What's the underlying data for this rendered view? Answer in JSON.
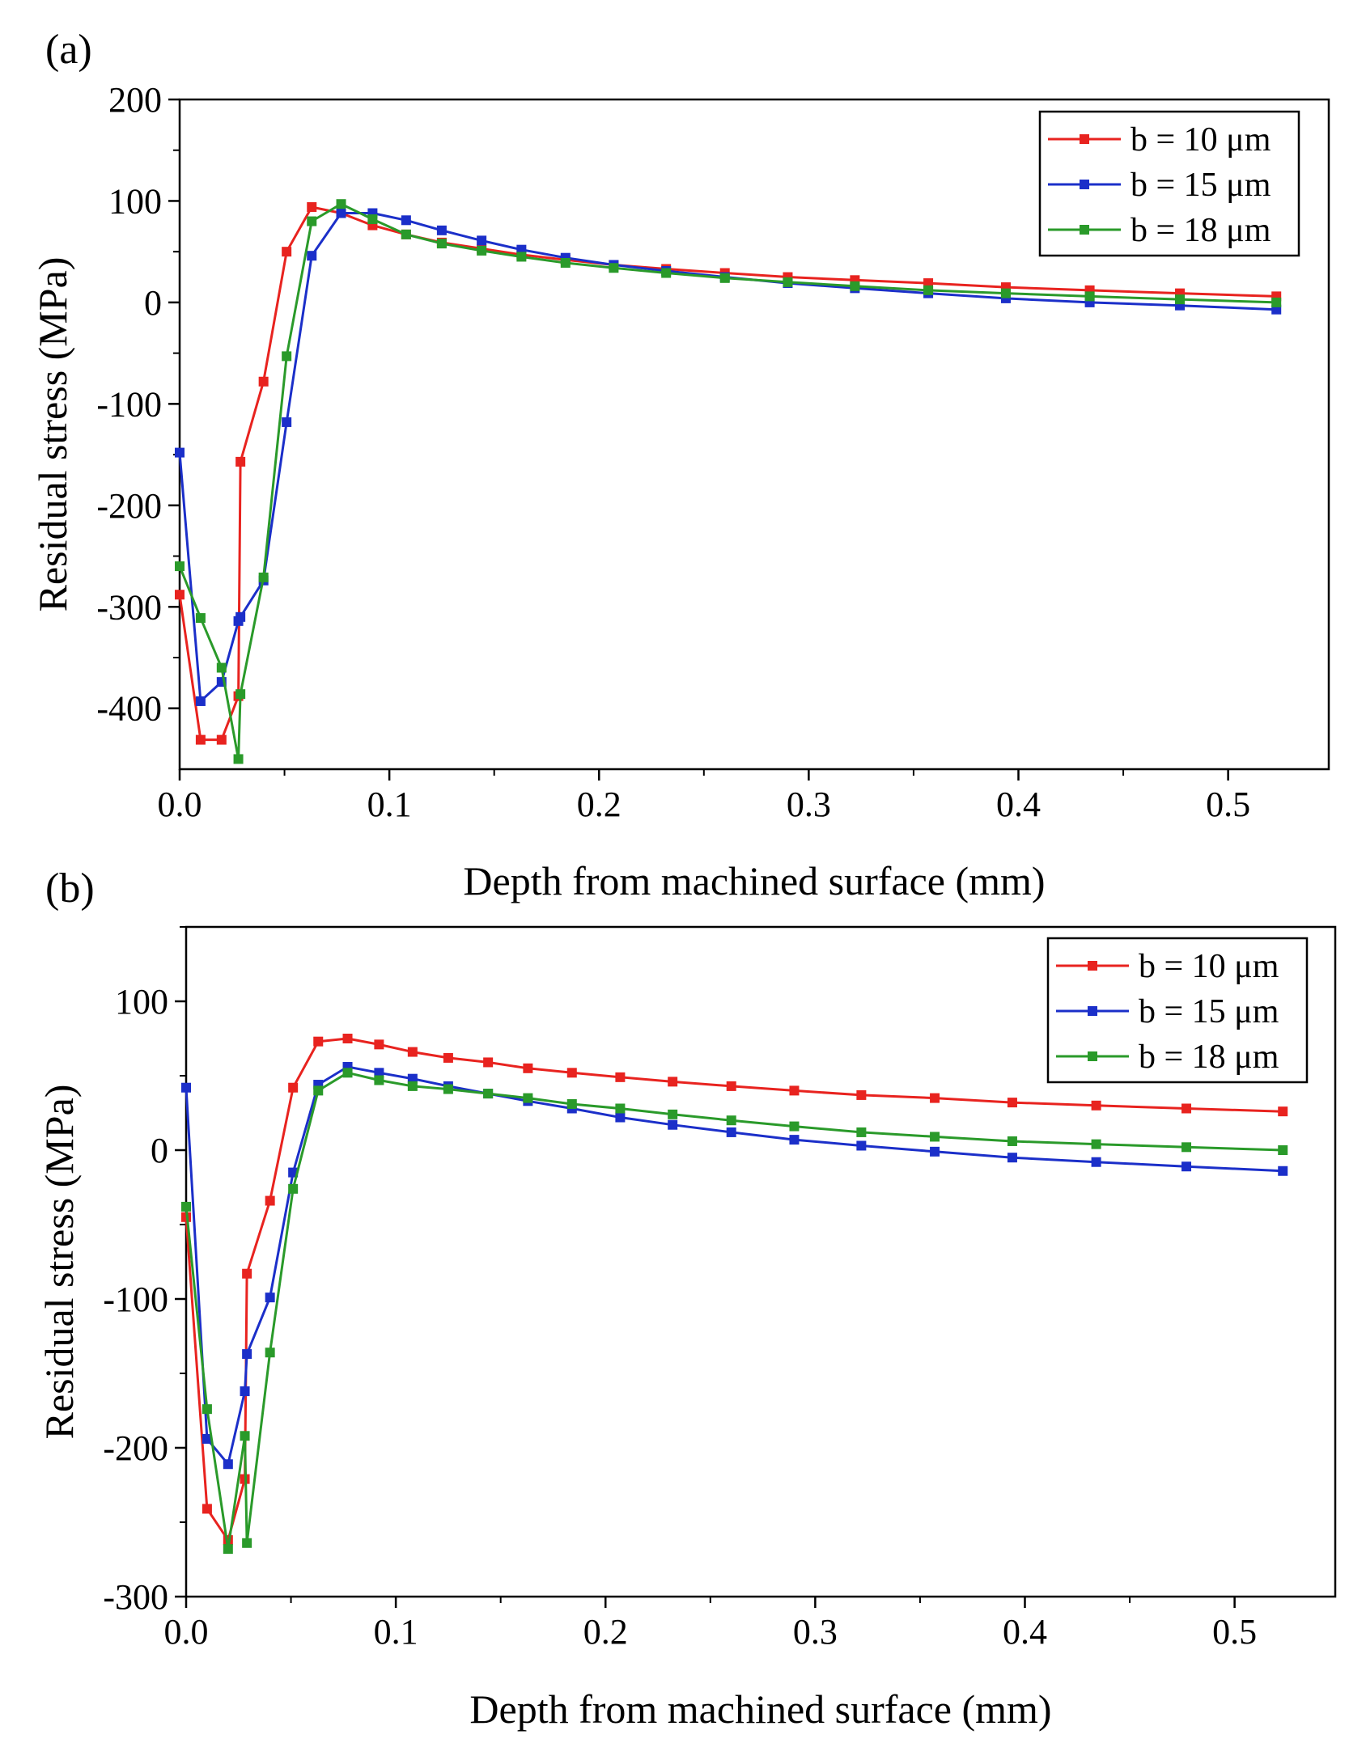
{
  "figure": {
    "panels": [
      "(a)",
      "(b)"
    ]
  },
  "chart_data": [
    {
      "type": "line",
      "panel_label": "(a)",
      "title": "",
      "xlabel": "Depth from machined surface (mm)",
      "ylabel": "Residual stress (MPa)",
      "xlim": [
        0,
        0.548
      ],
      "ylim": [
        -460,
        200
      ],
      "xticks": [
        0.0,
        0.1,
        0.2,
        0.3,
        0.4,
        0.5
      ],
      "xtick_labels": [
        "0.0",
        "0.1",
        "0.2",
        "0.3",
        "0.4",
        "0.5"
      ],
      "yticks": [
        -400,
        -300,
        -200,
        -100,
        0,
        100,
        200
      ],
      "ytick_labels": [
        "-400",
        "-300",
        "-200",
        "-100",
        "0",
        "100",
        "200"
      ],
      "grid": false,
      "legend_position": "top-right",
      "series": [
        {
          "name": "b = 10 μm",
          "color": "#e8231f",
          "x": [
            0.0,
            0.01,
            0.02,
            0.028,
            0.029,
            0.04,
            0.051,
            0.063,
            0.077,
            0.092,
            0.108,
            0.125,
            0.144,
            0.163,
            0.184,
            0.207,
            0.232,
            0.26,
            0.29,
            0.322,
            0.357,
            0.394,
            0.434,
            0.477,
            0.523
          ],
          "y": [
            -288,
            -431,
            -431,
            -388,
            -157,
            -78,
            50,
            94,
            88,
            76,
            67,
            59,
            53,
            47,
            42,
            37,
            33,
            29,
            25,
            22,
            19,
            15,
            12,
            9,
            6
          ]
        },
        {
          "name": "b = 15 μm",
          "color": "#1b2fc9",
          "x": [
            0.0,
            0.01,
            0.02,
            0.028,
            0.029,
            0.04,
            0.051,
            0.063,
            0.077,
            0.092,
            0.108,
            0.125,
            0.144,
            0.163,
            0.184,
            0.207,
            0.232,
            0.26,
            0.29,
            0.322,
            0.357,
            0.394,
            0.434,
            0.477,
            0.523
          ],
          "y": [
            -148,
            -393,
            -374,
            -314,
            -310,
            -274,
            -118,
            46,
            88,
            88,
            81,
            71,
            61,
            52,
            44,
            37,
            31,
            25,
            19,
            14,
            9,
            4,
            0,
            -3,
            -7
          ]
        },
        {
          "name": "b = 18 μm",
          "color": "#2a9a2a",
          "x": [
            0.0,
            0.01,
            0.02,
            0.028,
            0.029,
            0.04,
            0.051,
            0.063,
            0.077,
            0.092,
            0.108,
            0.125,
            0.144,
            0.163,
            0.184,
            0.207,
            0.232,
            0.26,
            0.29,
            0.322,
            0.357,
            0.394,
            0.434,
            0.477,
            0.523
          ],
          "y": [
            -260,
            -311,
            -360,
            -450,
            -386,
            -271,
            -53,
            80,
            97,
            82,
            67,
            58,
            51,
            45,
            39,
            34,
            29,
            24,
            20,
            16,
            12,
            9,
            6,
            3,
            0
          ]
        }
      ]
    },
    {
      "type": "line",
      "panel_label": "(b)",
      "title": "",
      "xlabel": "Depth from machined surface (mm)",
      "ylabel": "Residual stress (MPa)",
      "xlim": [
        0,
        0.548
      ],
      "ylim": [
        -300,
        150
      ],
      "xticks": [
        0.0,
        0.1,
        0.2,
        0.3,
        0.4,
        0.5
      ],
      "xtick_labels": [
        "0.0",
        "0.1",
        "0.2",
        "0.3",
        "0.4",
        "0.5"
      ],
      "yticks": [
        -300,
        -200,
        -100,
        0,
        100
      ],
      "ytick_labels": [
        "-300",
        "-200",
        "-100",
        "0",
        "100"
      ],
      "grid": false,
      "legend_position": "top-right",
      "series": [
        {
          "name": "b = 10 μm",
          "color": "#e8231f",
          "x": [
            0.0,
            0.01,
            0.02,
            0.028,
            0.029,
            0.04,
            0.051,
            0.063,
            0.077,
            0.092,
            0.108,
            0.125,
            0.144,
            0.163,
            0.184,
            0.207,
            0.232,
            0.26,
            0.29,
            0.322,
            0.357,
            0.394,
            0.434,
            0.477,
            0.523
          ],
          "y": [
            -45,
            -241,
            -262,
            -221,
            -83,
            -34,
            42,
            73,
            75,
            71,
            66,
            62,
            59,
            55,
            52,
            49,
            46,
            43,
            40,
            37,
            35,
            32,
            30,
            28,
            26
          ]
        },
        {
          "name": "b = 15 μm",
          "color": "#1b2fc9",
          "x": [
            0.0,
            0.01,
            0.02,
            0.028,
            0.029,
            0.04,
            0.051,
            0.063,
            0.077,
            0.092,
            0.108,
            0.125,
            0.144,
            0.163,
            0.184,
            0.207,
            0.232,
            0.26,
            0.29,
            0.322,
            0.357,
            0.394,
            0.434,
            0.477,
            0.523
          ],
          "y": [
            42,
            -194,
            -211,
            -162,
            -137,
            -99,
            -15,
            44,
            56,
            52,
            48,
            43,
            38,
            33,
            28,
            22,
            17,
            12,
            7,
            3,
            -1,
            -5,
            -8,
            -11,
            -14
          ]
        },
        {
          "name": "b = 18 μm",
          "color": "#2a9a2a",
          "x": [
            0.0,
            0.01,
            0.02,
            0.028,
            0.029,
            0.04,
            0.051,
            0.063,
            0.077,
            0.092,
            0.108,
            0.125,
            0.144,
            0.163,
            0.184,
            0.207,
            0.232,
            0.26,
            0.29,
            0.322,
            0.357,
            0.394,
            0.434,
            0.477,
            0.523
          ],
          "y": [
            -38,
            -174,
            -268,
            -192,
            -264,
            -136,
            -26,
            40,
            52,
            47,
            43,
            41,
            38,
            35,
            31,
            28,
            24,
            20,
            16,
            12,
            9,
            6,
            4,
            2,
            0
          ]
        }
      ]
    }
  ]
}
